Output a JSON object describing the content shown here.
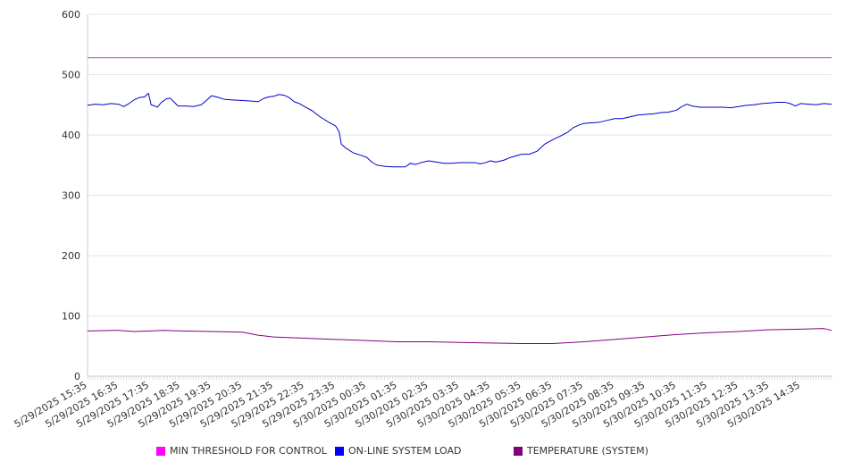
{
  "chart_data": {
    "type": "line",
    "title": "",
    "xlabel": "",
    "ylabel": "",
    "ylim": [
      0,
      600
    ],
    "yticks": [
      0,
      100,
      200,
      300,
      400,
      500,
      600
    ],
    "x_tick_labels": [
      "5/29/2025 15:35",
      "5/29/2025 16:35",
      "5/29/2025 17:35",
      "5/29/2025 18:35",
      "5/29/2025 19:35",
      "5/29/2025 20:35",
      "5/29/2025 21:35",
      "5/29/2025 22:35",
      "5/29/2025 23:35",
      "5/30/2025 00:35",
      "5/30/2025 01:35",
      "5/30/2025 02:35",
      "5/30/2025 03:35",
      "5/30/2025 04:35",
      "5/30/2025 05:35",
      "5/30/2025 06:35",
      "5/30/2025 07:35",
      "5/30/2025 08:35",
      "5/30/2025 09:35",
      "5/30/2025 10:35",
      "5/30/2025 11:35",
      "5/30/2025 12:35",
      "5/30/2025 13:35",
      "5/30/2025 14:35"
    ],
    "x_domain": [
      "5/29/2025 15:35",
      "5/30/2025 15:35"
    ],
    "grid": true,
    "legend_position": "bottom",
    "series": [
      {
        "name": "MIN THRESHOLD FOR CONTROL",
        "color": "#cc33cc",
        "legend_color": "#ff00ff",
        "points": [
          [
            "5/29/2025 15:35",
            528
          ],
          [
            "5/30/2025 15:35",
            528
          ]
        ]
      },
      {
        "name": "ON-LINE SYSTEM LOAD",
        "color": "#0000cc",
        "legend_color": "#0000ff",
        "points": [
          [
            "5/29/2025 15:35",
            449
          ],
          [
            "5/29/2025 15:50",
            451
          ],
          [
            "5/29/2025 16:05",
            450
          ],
          [
            "5/29/2025 16:20",
            452
          ],
          [
            "5/29/2025 16:35",
            451
          ],
          [
            "5/29/2025 16:45",
            447
          ],
          [
            "5/29/2025 16:55",
            452
          ],
          [
            "5/29/2025 17:05",
            458
          ],
          [
            "5/29/2025 17:15",
            462
          ],
          [
            "5/29/2025 17:25",
            463
          ],
          [
            "5/29/2025 17:33",
            469
          ],
          [
            "5/29/2025 17:38",
            450
          ],
          [
            "5/29/2025 17:45",
            448
          ],
          [
            "5/29/2025 17:50",
            446
          ],
          [
            "5/29/2025 17:58",
            454
          ],
          [
            "5/29/2025 18:08",
            460
          ],
          [
            "5/29/2025 18:15",
            461
          ],
          [
            "5/29/2025 18:22",
            455
          ],
          [
            "5/29/2025 18:30",
            448
          ],
          [
            "5/29/2025 18:45",
            448
          ],
          [
            "5/29/2025 19:00",
            447
          ],
          [
            "5/29/2025 19:15",
            450
          ],
          [
            "5/29/2025 19:25",
            457
          ],
          [
            "5/29/2025 19:35",
            465
          ],
          [
            "5/29/2025 19:45",
            463
          ],
          [
            "5/29/2025 20:00",
            459
          ],
          [
            "5/29/2025 20:15",
            458
          ],
          [
            "5/29/2025 20:35",
            457
          ],
          [
            "5/29/2025 20:55",
            456
          ],
          [
            "5/29/2025 21:05",
            455
          ],
          [
            "5/29/2025 21:15",
            460
          ],
          [
            "5/29/2025 21:25",
            463
          ],
          [
            "5/29/2025 21:35",
            464
          ],
          [
            "5/29/2025 21:45",
            467
          ],
          [
            "5/29/2025 21:55",
            466
          ],
          [
            "5/29/2025 22:05",
            462
          ],
          [
            "5/29/2025 22:15",
            455
          ],
          [
            "5/29/2025 22:25",
            452
          ],
          [
            "5/29/2025 22:35",
            447
          ],
          [
            "5/29/2025 22:50",
            440
          ],
          [
            "5/29/2025 23:05",
            430
          ],
          [
            "5/29/2025 23:20",
            422
          ],
          [
            "5/29/2025 23:35",
            415
          ],
          [
            "5/29/2025 23:42",
            405
          ],
          [
            "5/29/2025 23:46",
            385
          ],
          [
            "5/29/2025 23:55",
            378
          ],
          [
            "5/30/2025 00:10",
            370
          ],
          [
            "5/30/2025 00:25",
            366
          ],
          [
            "5/30/2025 00:35",
            363
          ],
          [
            "5/30/2025 00:45",
            355
          ],
          [
            "5/30/2025 00:55",
            350
          ],
          [
            "5/30/2025 01:10",
            348
          ],
          [
            "5/30/2025 01:25",
            347
          ],
          [
            "5/30/2025 01:35",
            347
          ],
          [
            "5/30/2025 01:50",
            347
          ],
          [
            "5/30/2025 02:00",
            353
          ],
          [
            "5/30/2025 02:10",
            351
          ],
          [
            "5/30/2025 02:20",
            354
          ],
          [
            "5/30/2025 02:35",
            357
          ],
          [
            "5/30/2025 02:50",
            355
          ],
          [
            "5/30/2025 03:05",
            353
          ],
          [
            "5/30/2025 03:20",
            353
          ],
          [
            "5/30/2025 03:35",
            354
          ],
          [
            "5/30/2025 03:50",
            354
          ],
          [
            "5/30/2025 04:05",
            354
          ],
          [
            "5/30/2025 04:15",
            352
          ],
          [
            "5/30/2025 04:25",
            354
          ],
          [
            "5/30/2025 04:35",
            357
          ],
          [
            "5/30/2025 04:45",
            355
          ],
          [
            "5/30/2025 05:00",
            358
          ],
          [
            "5/30/2025 05:15",
            363
          ],
          [
            "5/30/2025 05:35",
            368
          ],
          [
            "5/30/2025 05:50",
            368
          ],
          [
            "5/30/2025 06:05",
            373
          ],
          [
            "5/30/2025 06:20",
            385
          ],
          [
            "5/30/2025 06:35",
            392
          ],
          [
            "5/30/2025 06:50",
            398
          ],
          [
            "5/30/2025 07:05",
            405
          ],
          [
            "5/30/2025 07:15",
            412
          ],
          [
            "5/30/2025 07:25",
            416
          ],
          [
            "5/30/2025 07:35",
            419
          ],
          [
            "5/30/2025 07:50",
            420
          ],
          [
            "5/30/2025 08:05",
            421
          ],
          [
            "5/30/2025 08:20",
            424
          ],
          [
            "5/30/2025 08:35",
            427
          ],
          [
            "5/30/2025 08:50",
            427
          ],
          [
            "5/30/2025 09:05",
            430
          ],
          [
            "5/30/2025 09:20",
            433
          ],
          [
            "5/30/2025 09:35",
            434
          ],
          [
            "5/30/2025 09:50",
            435
          ],
          [
            "5/30/2025 10:05",
            437
          ],
          [
            "5/30/2025 10:20",
            438
          ],
          [
            "5/30/2025 10:35",
            441
          ],
          [
            "5/30/2025 10:45",
            447
          ],
          [
            "5/30/2025 10:55",
            451
          ],
          [
            "5/30/2025 11:05",
            448
          ],
          [
            "5/30/2025 11:20",
            446
          ],
          [
            "5/30/2025 11:35",
            446
          ],
          [
            "5/30/2025 11:50",
            446
          ],
          [
            "5/30/2025 12:05",
            446
          ],
          [
            "5/30/2025 12:20",
            445
          ],
          [
            "5/30/2025 12:35",
            447
          ],
          [
            "5/30/2025 12:50",
            449
          ],
          [
            "5/30/2025 13:05",
            450
          ],
          [
            "5/30/2025 13:20",
            452
          ],
          [
            "5/30/2025 13:35",
            453
          ],
          [
            "5/30/2025 13:50",
            454
          ],
          [
            "5/30/2025 14:05",
            454
          ],
          [
            "5/30/2025 14:15",
            452
          ],
          [
            "5/30/2025 14:25",
            448
          ],
          [
            "5/30/2025 14:35",
            452
          ],
          [
            "5/30/2025 14:50",
            451
          ],
          [
            "5/30/2025 15:05",
            450
          ],
          [
            "5/30/2025 15:20",
            452
          ],
          [
            "5/30/2025 15:35",
            451
          ]
        ]
      },
      {
        "name": "TEMPERATURE (SYSTEM)",
        "color": "#800080",
        "legend_color": "#800080",
        "points": [
          [
            "5/29/2025 15:35",
            75
          ],
          [
            "5/29/2025 16:35",
            76
          ],
          [
            "5/29/2025 17:05",
            74
          ],
          [
            "5/29/2025 17:35",
            75
          ],
          [
            "5/29/2025 18:05",
            76
          ],
          [
            "5/29/2025 18:35",
            75
          ],
          [
            "5/29/2025 19:35",
            74
          ],
          [
            "5/29/2025 20:35",
            73
          ],
          [
            "5/29/2025 21:05",
            68
          ],
          [
            "5/29/2025 21:35",
            65
          ],
          [
            "5/29/2025 22:35",
            63
          ],
          [
            "5/29/2025 23:35",
            61
          ],
          [
            "5/30/2025 00:35",
            59
          ],
          [
            "5/30/2025 01:35",
            57
          ],
          [
            "5/30/2025 02:35",
            57
          ],
          [
            "5/30/2025 03:35",
            56
          ],
          [
            "5/30/2025 04:35",
            55
          ],
          [
            "5/30/2025 05:35",
            54
          ],
          [
            "5/30/2025 06:35",
            54
          ],
          [
            "5/30/2025 07:35",
            57
          ],
          [
            "5/30/2025 08:35",
            61
          ],
          [
            "5/30/2025 09:35",
            65
          ],
          [
            "5/30/2025 10:35",
            69
          ],
          [
            "5/30/2025 11:35",
            72
          ],
          [
            "5/30/2025 12:35",
            74
          ],
          [
            "5/30/2025 13:35",
            77
          ],
          [
            "5/30/2025 14:35",
            78
          ],
          [
            "5/30/2025 15:20",
            79
          ],
          [
            "5/30/2025 15:35",
            76
          ]
        ]
      }
    ]
  }
}
